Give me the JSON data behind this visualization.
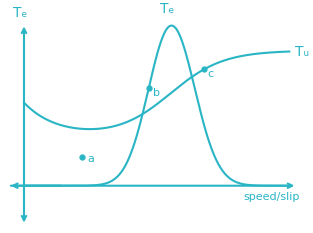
{
  "curve_color": "#2ab5c5",
  "background_color": "#ffffff",
  "axis_color": "#2ab5c5",
  "Te_label": "Tₑ",
  "Tu_label": "Tᵤ",
  "xlabel": "speed/slip",
  "ylabel": "Tₑ",
  "figsize": [
    3.13,
    2.33
  ],
  "dpi": 100
}
